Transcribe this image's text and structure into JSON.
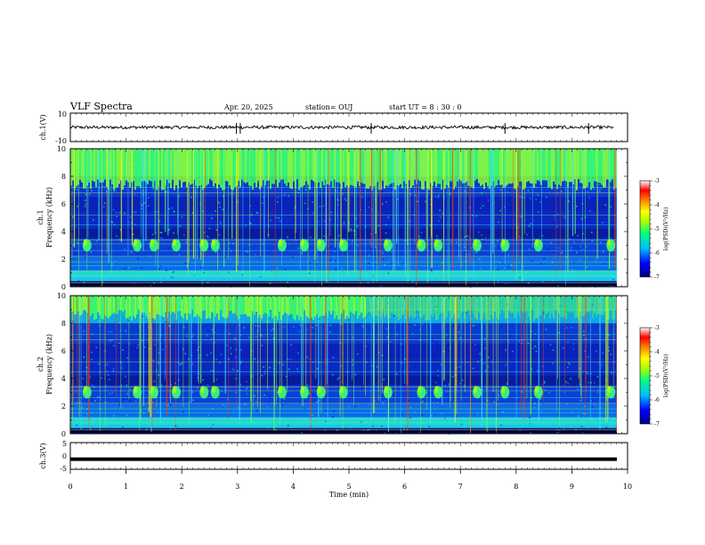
{
  "header": {
    "title": "VLF Spectra",
    "date": "Apr. 20, 2025",
    "station": "station= OUJ",
    "start": "start  UT =   8 : 30 : 0"
  },
  "colors": {
    "spectrogram_scale": [
      "#00008b",
      "#0000ff",
      "#00bfff",
      "#00ff80",
      "#b0ff00",
      "#ffff00",
      "#ff8000",
      "#ff0000",
      "#ffffff"
    ]
  },
  "chart_data": [
    {
      "type": "line",
      "panel": "ch1-waveform",
      "ylabel": "ch.1(V)",
      "ylim": [
        -10,
        10
      ],
      "yticks": [
        "10",
        "-10"
      ],
      "baseline_value": 0,
      "spikes_min": [
        2.98,
        3.05,
        5.4,
        7.8,
        9.3
      ]
    },
    {
      "type": "heatmap",
      "panel": "ch1-spectrogram",
      "ylabel_top": "ch.1",
      "ylabel": "Frequency (kHz)",
      "ylim": [
        0,
        10
      ],
      "yticks": [
        "0",
        "2",
        "4",
        "6",
        "8",
        "10"
      ],
      "colorbar": {
        "ticks": [
          "-3",
          "-4",
          "-5",
          "-6",
          "-7"
        ],
        "label": "log(PSD)(V²/Hz)",
        "range": [
          -7,
          -3
        ]
      },
      "chorus_events_min": [
        0.3,
        1.2,
        1.5,
        1.9,
        2.4,
        2.6,
        3.8,
        4.2,
        4.5,
        4.9,
        5.7,
        6.3,
        6.6,
        7.3,
        7.8,
        8.4,
        9.7
      ],
      "chorus_band_khz": [
        2.5,
        3.5
      ]
    },
    {
      "type": "heatmap",
      "panel": "ch2-spectrogram",
      "ylabel_top": "ch.2",
      "ylabel": "Frequency (kHz)",
      "ylim": [
        0,
        10
      ],
      "yticks": [
        "0",
        "2",
        "4",
        "6",
        "8",
        "10"
      ],
      "colorbar": {
        "ticks": [
          "-3",
          "-4",
          "-5",
          "-6",
          "-7"
        ],
        "label": "log(PSD)(V²/Hz)",
        "range": [
          -7,
          -3
        ]
      },
      "chorus_events_min": [
        0.3,
        1.2,
        1.5,
        1.9,
        2.4,
        2.6,
        3.8,
        4.2,
        4.5,
        4.9,
        5.7,
        6.3,
        6.6,
        7.3,
        7.8,
        8.4,
        9.7
      ],
      "chorus_band_khz": [
        2.5,
        3.5
      ]
    },
    {
      "type": "line",
      "panel": "ch3-waveform",
      "ylabel": "ch.3(V)",
      "ylim": [
        -5,
        5
      ],
      "yticks": [
        "5",
        "0",
        "-5"
      ],
      "baseline_value": -1.2
    }
  ],
  "xaxis": {
    "label": "Time (min)",
    "range": [
      0,
      10
    ],
    "ticks": [
      "0",
      "1",
      "2",
      "3",
      "4",
      "5",
      "6",
      "7",
      "8",
      "9",
      "10"
    ]
  }
}
